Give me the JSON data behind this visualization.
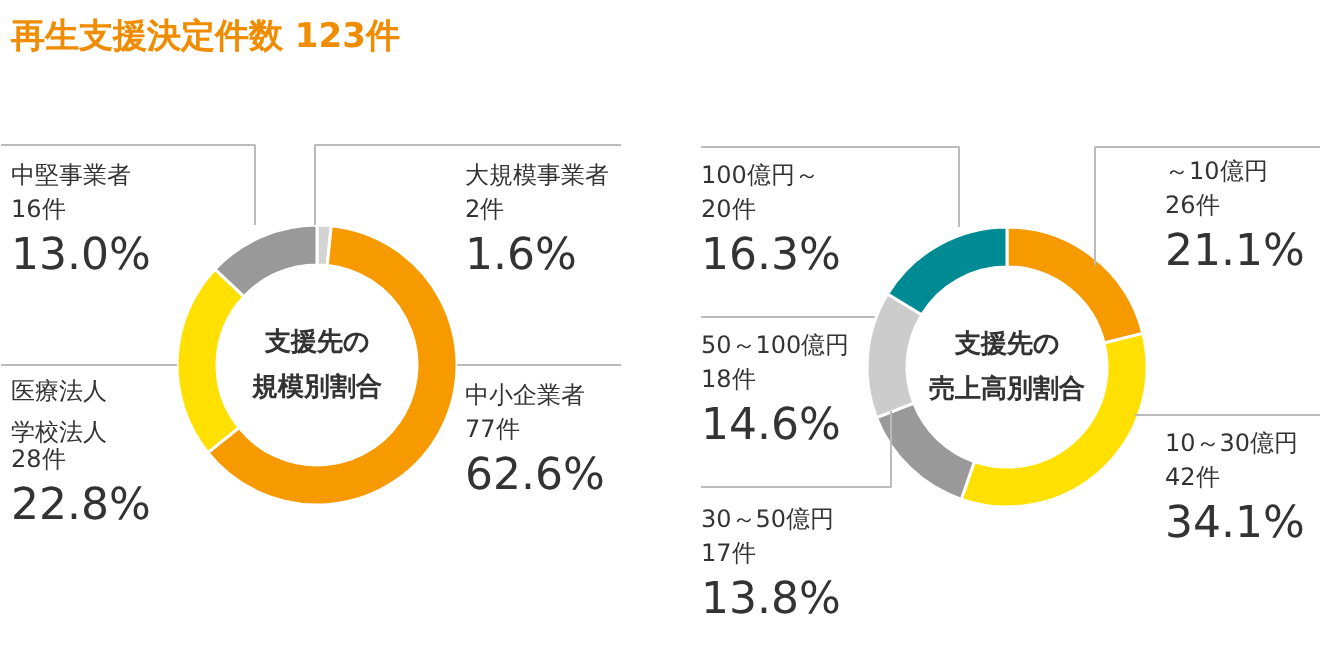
{
  "chart_data": [
    {
      "type": "donut",
      "title": "再生支援決定件数 123件",
      "subtitle": "支援先の規模別割合",
      "categories": [
        "大規模事業者",
        "中小企業者",
        "医療法人学校法人",
        "中堅事業者"
      ],
      "values": [
        2,
        77,
        28,
        16
      ],
      "colors": [
        "#d3d3d3",
        "#f79a00",
        "#ffe000",
        "#999999"
      ],
      "value_labels": [
        "2件\n1.6%",
        "77件\n62.6%",
        "28件\n22.8%",
        "16件\n13.0%"
      ],
      "legend": false
    },
    {
      "type": "donut",
      "subtitle": "支援先の売上高別割合",
      "categories": [
        "～10億円",
        "10～30億円",
        "30～50億円",
        "50～100億円",
        "100億円～"
      ],
      "values": [
        26,
        42,
        17,
        18,
        20
      ],
      "colors": [
        "#f79a00",
        "#ffe000",
        "#999999",
        "#cccccc",
        "#008b94"
      ],
      "value_labels": [
        "26件\n21.1%",
        "42件\n34.1%",
        "17件\n13.8%",
        "18件\n14.6%",
        "20件\n16.3%"
      ],
      "legend": false
    }
  ]
}
